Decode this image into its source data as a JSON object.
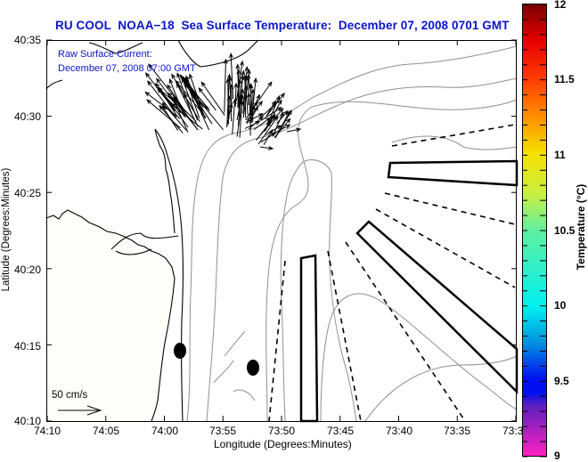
{
  "title": "RU COOL  NOAA−18  Sea Surface Temperature:  December 07, 2008 0701 GMT",
  "annotation": {
    "line1": "Raw Surface Current:",
    "line2": "December 07, 2008 07:00 GMT"
  },
  "axes": {
    "xlabel": "Longitude (Degrees:Minutes)",
    "ylabel": "Latitude (Degrees:Minutes)",
    "xticks": [
      "74:10",
      "74:05",
      "74:00",
      "73:55",
      "73:50",
      "73:45",
      "73:40",
      "73:35",
      "73:30"
    ],
    "yticks": [
      "40:35",
      "40:30",
      "40:25",
      "40:20",
      "40:15",
      "40:10"
    ]
  },
  "scale_vector": {
    "label": "50 cm/s"
  },
  "colorbar": {
    "label": "Temperature (°C)",
    "ticks": [
      "12",
      "11.5",
      "11",
      "10.5",
      "10",
      "9.5",
      "9"
    ],
    "range": [
      9,
      12
    ],
    "colors": {
      "c12": "#7a0000",
      "c11_75": "#e60000",
      "c11_5": "#ff4000",
      "c11_25": "#ff9000",
      "c11": "#f5e000",
      "c10_75": "#c8f040",
      "c10_5": "#60f0a0",
      "c10": "#00f0f0",
      "c9_75": "#0090e0",
      "c9_5": "#0010f0",
      "c9_3": "#6020c0",
      "c9": "#ff20c0"
    }
  },
  "colors": {
    "title": "#0a14c8",
    "coastline": "#000000",
    "bathymetry": "#909090",
    "land": "#fffffa"
  },
  "chart_data": {
    "type": "map",
    "title": "RU COOL  NOAA-18  Sea Surface Temperature:  December 07, 2008 0701 GMT",
    "xlabel": "Longitude (Degrees:Minutes)",
    "ylabel": "Latitude (Degrees:Minutes)",
    "xlim_deg": [
      -74.1667,
      -73.5
    ],
    "ylim_deg": [
      40.1667,
      40.5833
    ],
    "xticks": [
      "74:10",
      "74:05",
      "74:00",
      "73:55",
      "73:50",
      "73:45",
      "73:40",
      "73:35",
      "73:30"
    ],
    "yticks": [
      "40:35",
      "40:30",
      "40:25",
      "40:20",
      "40:15",
      "40:10"
    ],
    "colorbar": {
      "label": "Temperature (°C)",
      "min": 9,
      "max": 12,
      "ticks": [
        9,
        9.5,
        10,
        10.5,
        11,
        11.5,
        12
      ]
    },
    "vector_field": {
      "name": "Raw Surface Current",
      "time": "December 07, 2008 07:00 GMT",
      "scale": "50 cm/s",
      "region": "near 73:57W 40:30N, fanning out from Sandy Hook area"
    },
    "markers": [
      {
        "type": "filled-ellipse",
        "lon": "73:59",
        "lat": "40:14.5"
      },
      {
        "type": "filled-ellipse",
        "lon": "73:52",
        "lat": "40:13.5"
      }
    ],
    "overlays": [
      "solid polygon zones",
      "dashed boundary lines",
      "bathymetric contours (gray)",
      "coastline (black)"
    ]
  }
}
